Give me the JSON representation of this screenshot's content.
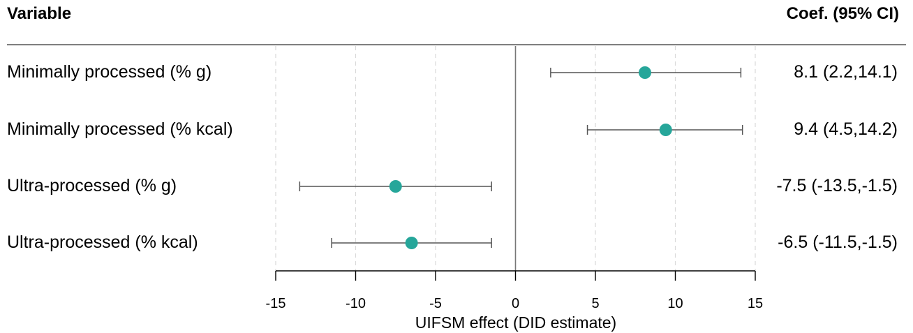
{
  "header": {
    "variable_label": "Variable",
    "coef_label": "Coef. (95% CI)"
  },
  "chart_data": {
    "type": "forest",
    "xlabel": "UIFSM effect (DID estimate)",
    "xlim": [
      -15,
      15
    ],
    "xticks": [
      -15,
      -10,
      -5,
      0,
      5,
      10,
      15
    ],
    "tick_labels": [
      "-15",
      "-10",
      "-5",
      "0",
      "5",
      "10",
      "15"
    ],
    "grid": "vertical dashed",
    "point_color": "#26A69A",
    "rows": [
      {
        "label": "Minimally processed (% g)",
        "estimate": 8.1,
        "lower": 2.2,
        "upper": 14.1,
        "ci_text": "8.1 (2.2,14.1)"
      },
      {
        "label": "Minimally processed (% kcal)",
        "estimate": 9.4,
        "lower": 4.5,
        "upper": 14.2,
        "ci_text": "9.4 (4.5,14.2)"
      },
      {
        "label": "Ultra-processed (% g)",
        "estimate": -7.5,
        "lower": -13.5,
        "upper": -1.5,
        "ci_text": "-7.5 (-13.5,-1.5)"
      },
      {
        "label": "Ultra-processed (% kcal)",
        "estimate": -6.5,
        "lower": -11.5,
        "upper": -1.5,
        "ci_text": "-6.5 (-11.5,-1.5)"
      }
    ]
  }
}
